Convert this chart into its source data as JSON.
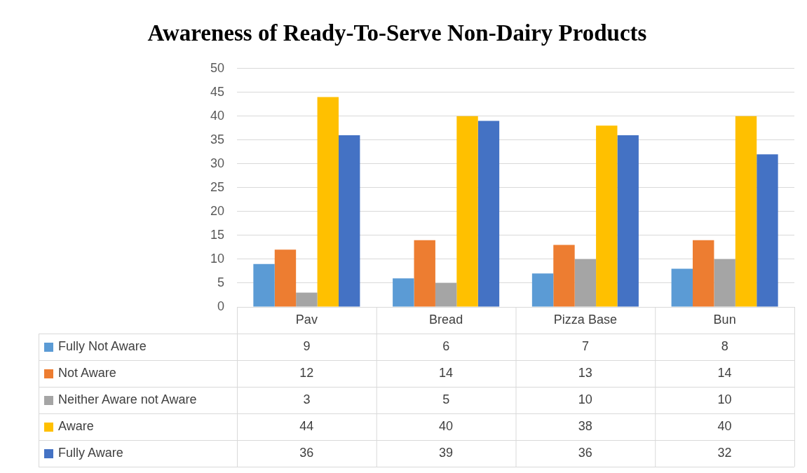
{
  "chart_data": {
    "type": "bar",
    "title": "Awareness of Ready-To-Serve Non-Dairy Products",
    "categories": [
      "Pav",
      "Bread",
      "Pizza Base",
      "Bun"
    ],
    "series": [
      {
        "name": "Fully Not Aware",
        "color": "#5b9bd5",
        "values": [
          9,
          6,
          7,
          8
        ]
      },
      {
        "name": "Not Aware",
        "color": "#ed7d31",
        "values": [
          12,
          14,
          13,
          14
        ]
      },
      {
        "name": "Neither Aware not Aware",
        "color": "#a5a5a5",
        "values": [
          3,
          5,
          10,
          10
        ]
      },
      {
        "name": "Aware",
        "color": "#ffc000",
        "values": [
          44,
          40,
          38,
          40
        ]
      },
      {
        "name": "Fully Aware",
        "color": "#4472c4",
        "values": [
          36,
          39,
          36,
          32
        ]
      }
    ],
    "ylim": [
      0,
      50
    ],
    "yticks": [
      0,
      5,
      10,
      15,
      20,
      25,
      30,
      35,
      40,
      45,
      50
    ],
    "grid": "y",
    "legend": "bottom",
    "data_labels": true
  }
}
